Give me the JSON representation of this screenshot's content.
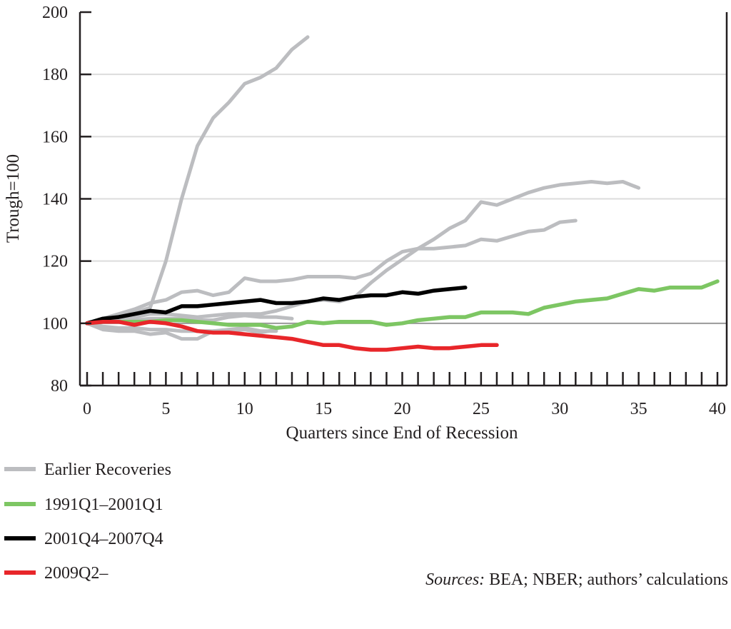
{
  "chart_data": {
    "type": "line",
    "xlabel": "Quarters since End of Recession",
    "ylabel": "Trough=100",
    "xlim": [
      0,
      40
    ],
    "ylim": [
      80,
      200
    ],
    "xticks": [
      "0",
      "5",
      "10",
      "15",
      "20",
      "25",
      "30",
      "35",
      "40"
    ],
    "yticks": [
      "80",
      "100",
      "120",
      "140",
      "160",
      "180",
      "200"
    ],
    "grid": true,
    "legend_position": "bottom-left",
    "legend": [
      {
        "label": "Earlier Recoveries",
        "color": "#bcbdc0"
      },
      {
        "label": "1991Q1–2001Q1",
        "color": "#7dc663"
      },
      {
        "label": "2001Q4–2007Q4",
        "color": "#000000"
      },
      {
        "label": "2009Q2–",
        "color": "#e8262a"
      }
    ],
    "series": [
      {
        "group": "Earlier Recoveries",
        "color": "#bcbdc0",
        "values": [
          100,
          101,
          102,
          103.5,
          105,
          120,
          140,
          157,
          166,
          171,
          177,
          179,
          182,
          188,
          192
        ]
      },
      {
        "group": "Earlier Recoveries",
        "color": "#bcbdc0",
        "values": [
          100,
          101,
          102,
          102,
          103,
          103,
          102.5,
          102,
          102.5,
          103,
          103,
          103,
          104,
          105.5,
          107,
          107.5,
          107,
          108.5,
          113,
          117,
          120.5,
          124,
          127,
          130.5,
          133,
          139,
          138,
          140,
          142,
          143.5,
          144.5,
          145,
          145.5,
          145,
          145.5,
          143.5
        ]
      },
      {
        "group": "Earlier Recoveries",
        "color": "#bcbdc0",
        "values": [
          100,
          101.5,
          103,
          104.5,
          106.5,
          107.5,
          110,
          110.5,
          109,
          110,
          114.5,
          113.5,
          113.5,
          114,
          115,
          115,
          115,
          114.5,
          116,
          120,
          123,
          124,
          124,
          124.5,
          125,
          127,
          126.5,
          128,
          129.5,
          130,
          132.5,
          133
        ]
      },
      {
        "group": "Earlier Recoveries",
        "color": "#bcbdc0",
        "values": [
          100,
          101,
          101,
          101,
          101.5,
          101.5,
          101.5,
          101,
          101,
          102,
          102.5,
          102,
          102,
          101.5
        ]
      },
      {
        "group": "Earlier Recoveries",
        "color": "#bcbdc0",
        "values": [
          100,
          98,
          97.5,
          97.5,
          96.5,
          97,
          95,
          95,
          97.5,
          98,
          98.5,
          97.5,
          97.5
        ]
      },
      {
        "group": "Earlier Recoveries",
        "color": "#bcbdc0",
        "values": [
          100,
          99,
          98.5,
          98.5,
          98,
          98,
          97.5,
          97.5,
          97.5,
          97.5,
          98,
          97,
          98
        ]
      },
      {
        "name": "1991Q1–2001Q1",
        "color": "#7dc663",
        "values": [
          100,
          100.5,
          100.5,
          100.5,
          100.5,
          101,
          101,
          100.5,
          100,
          99.5,
          99.5,
          99.5,
          98.5,
          99,
          100.5,
          100,
          100.5,
          100.5,
          100.5,
          99.5,
          100,
          101,
          101.5,
          102,
          102,
          103.5,
          103.5,
          103.5,
          103,
          105,
          106,
          107,
          107.5,
          108,
          109.5,
          111,
          110.5,
          111.5,
          111.5,
          111.5,
          113.5
        ]
      },
      {
        "name": "2001Q4–2007Q4",
        "color": "#000000",
        "values": [
          100,
          101.5,
          102,
          103,
          104,
          103.5,
          105.5,
          105.5,
          106,
          106.5,
          107,
          107.5,
          106.5,
          106.5,
          107,
          108,
          107.5,
          108.5,
          109,
          109,
          110,
          109.5,
          110.5,
          111,
          111.5
        ]
      },
      {
        "name": "2009Q2–",
        "color": "#e8262a",
        "values": [
          100,
          100.5,
          100.5,
          99.5,
          100.5,
          100,
          99,
          97.5,
          97,
          97,
          96.5,
          96,
          95.5,
          95,
          94,
          93,
          93,
          92,
          91.5,
          91.5,
          92,
          92.5,
          92,
          92,
          92.5,
          93,
          93
        ]
      }
    ],
    "reference_line": 100,
    "source_note": {
      "label": "Sources:",
      "text": " BEA; NBER; authors’ calculations"
    }
  }
}
